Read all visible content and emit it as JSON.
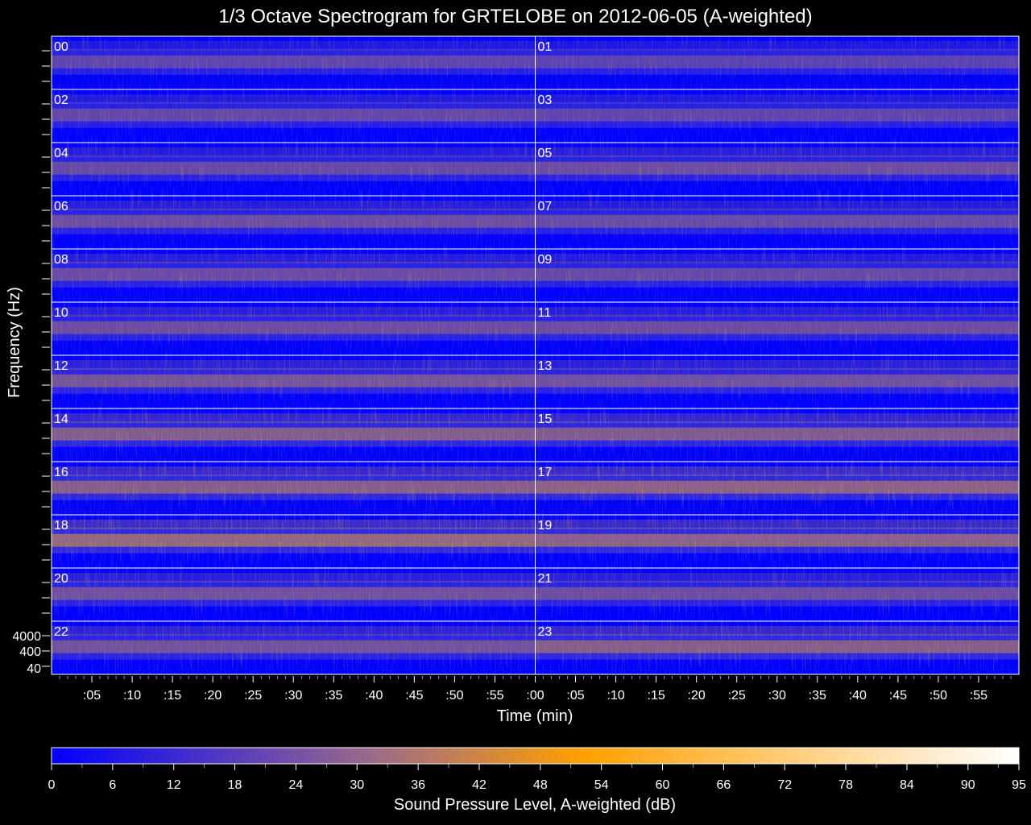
{
  "chart_data": {
    "type": "heatmap",
    "title": "1/3 Octave Spectrogram for GRTELOBE on 2012-06-05 (A-weighted)",
    "xlabel": "Time (min)",
    "ylabel": "Frequency (Hz)",
    "x_tick_labels": [
      ":05",
      ":10",
      ":15",
      ":20",
      ":25",
      ":30",
      ":35",
      ":40",
      ":45",
      ":50",
      ":55",
      ":00",
      ":05",
      ":10",
      ":15",
      ":20",
      ":25",
      ":30",
      ":35",
      ":40",
      ":45",
      ":50",
      ":55"
    ],
    "y_tick_labels": [
      "4000",
      "400",
      "40"
    ],
    "hour_labels": [
      "00",
      "01",
      "02",
      "03",
      "04",
      "05",
      "06",
      "07",
      "08",
      "09",
      "10",
      "11",
      "12",
      "13",
      "14",
      "15",
      "16",
      "17",
      "18",
      "19",
      "20",
      "21",
      "22",
      "23"
    ],
    "hour_intensity": [
      0.38,
      0.36,
      0.4,
      0.38,
      0.42,
      0.46,
      0.45,
      0.43,
      0.44,
      0.42,
      0.46,
      0.45,
      0.52,
      0.48,
      0.6,
      0.58,
      0.62,
      0.66,
      0.72,
      0.64,
      0.48,
      0.46,
      0.5,
      0.62
    ],
    "colorbar": {
      "label": "Sound Pressure Level, A-weighted (dB)",
      "min": 0,
      "max": 95,
      "tick_labels": [
        "0",
        "6",
        "12",
        "18",
        "24",
        "30",
        "36",
        "42",
        "48",
        "54",
        "60",
        "66",
        "72",
        "78",
        "84",
        "90",
        "95"
      ],
      "colors": [
        "#0000ff",
        "#9a6a8a",
        "#ffa000",
        "#ffffff"
      ]
    }
  }
}
